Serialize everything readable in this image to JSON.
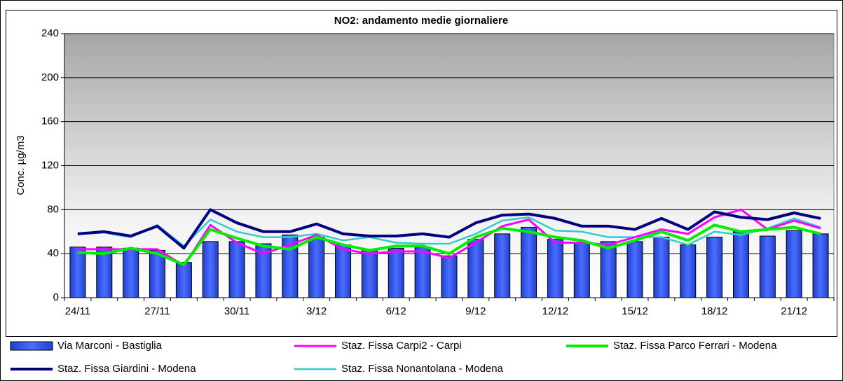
{
  "chart_data": {
    "type": "bar",
    "title": "NO2: andamento medie giornaliere",
    "y_label": "Conc. µg/m3",
    "categories": [
      "24/11",
      null,
      null,
      "27/11",
      null,
      null,
      "30/11",
      null,
      null,
      "3/12",
      null,
      null,
      "6/12",
      null,
      null,
      "9/12",
      null,
      null,
      "12/12",
      null,
      null,
      "15/12",
      null,
      null,
      "18/12",
      null,
      null,
      "21/12",
      null
    ],
    "ylim": [
      0,
      240
    ],
    "yticks": [
      0,
      40,
      80,
      120,
      160,
      200,
      240
    ],
    "grid": true,
    "series": [
      {
        "name": "Via Marconi - Bastiglia",
        "type": "bar",
        "color": "#3355ee",
        "values": [
          46,
          46,
          45,
          43,
          32,
          51,
          51,
          49,
          57,
          55,
          48,
          44,
          45,
          46,
          38,
          53,
          58,
          64,
          53,
          50,
          51,
          51,
          55,
          48,
          55,
          60,
          56,
          61,
          58
        ]
      },
      {
        "name": "Staz. Fissa Carpi2 - Carpi",
        "type": "line",
        "color": "#ff00ff",
        "values": [
          44,
          44,
          44,
          44,
          29,
          66,
          50,
          40,
          48,
          57,
          44,
          40,
          42,
          42,
          36,
          50,
          65,
          71,
          50,
          50,
          48,
          55,
          62,
          58,
          73,
          80,
          62,
          70,
          63
        ]
      },
      {
        "name": "Staz. Fissa Parco Ferrari - Modena",
        "type": "line",
        "color": "#00ee00",
        "values": [
          41,
          40,
          45,
          40,
          30,
          62,
          54,
          47,
          44,
          55,
          48,
          43,
          47,
          47,
          40,
          55,
          63,
          60,
          55,
          52,
          45,
          52,
          60,
          52,
          66,
          60,
          62,
          64,
          58
        ]
      },
      {
        "name": "Staz. Fissa Giardini - Modena",
        "type": "line",
        "color": "#000080",
        "values": [
          58,
          60,
          56,
          65,
          45,
          80,
          68,
          60,
          60,
          67,
          58,
          56,
          56,
          58,
          55,
          68,
          75,
          76,
          72,
          65,
          65,
          62,
          72,
          62,
          78,
          73,
          71,
          77,
          72
        ]
      },
      {
        "name": "Staz. Fissa Nonantolana - Modena",
        "type": "line",
        "color": "#33cccc",
        "values": [
          58,
          59,
          55,
          66,
          47,
          71,
          60,
          55,
          55,
          58,
          52,
          55,
          50,
          49,
          49,
          58,
          70,
          73,
          61,
          60,
          55,
          55,
          55,
          48,
          60,
          57,
          63,
          72,
          64
        ]
      }
    ]
  }
}
